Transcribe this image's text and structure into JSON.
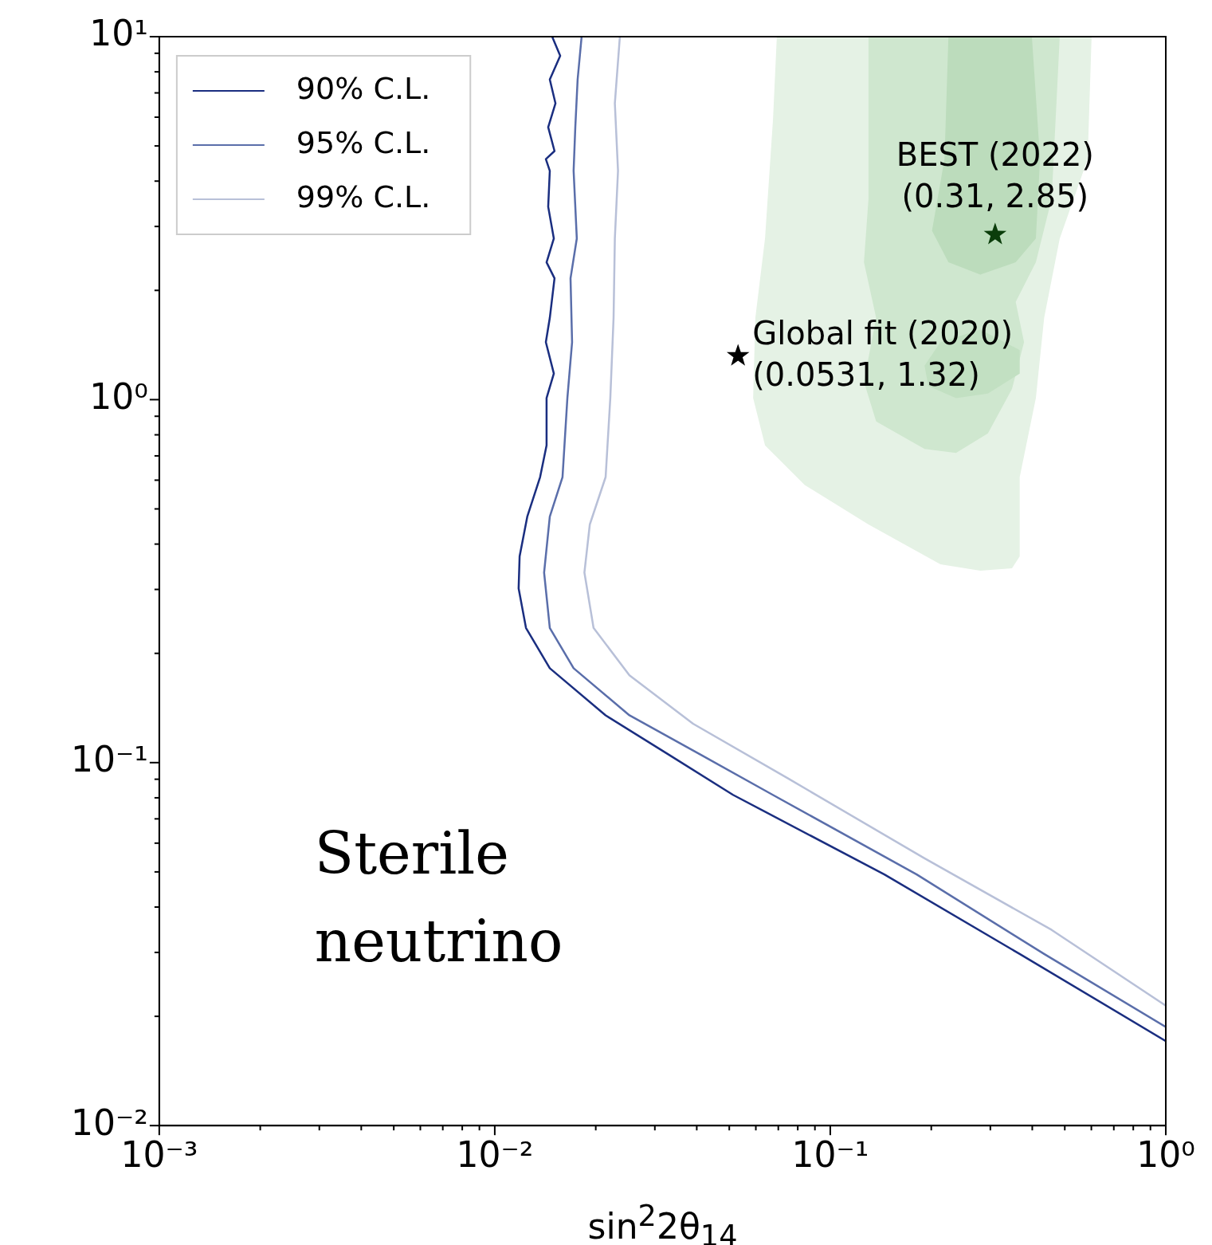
{
  "chart_data": {
    "type": "line",
    "xlabel": "sin$^{2}$2θ$_{14}$",
    "xlim": [
      0.001,
      1
    ],
    "ylim": [
      0.01,
      10
    ],
    "log": "xy",
    "grid": false,
    "legend": "top left",
    "marker": "none",
    "line_style": "solid",
    "xticks": [
      {
        "value": 0.001,
        "label": "10⁻³"
      },
      {
        "value": 0.002,
        "label": null
      },
      {
        "value": 0.003,
        "label": null
      },
      {
        "value": 0.004,
        "label": null
      },
      {
        "value": 0.005,
        "label": null
      },
      {
        "value": 0.006,
        "label": null
      },
      {
        "value": 0.007,
        "label": null
      },
      {
        "value": 0.008,
        "label": null
      },
      {
        "value": 0.009,
        "label": null
      },
      {
        "value": 0.01,
        "label": "10⁻²"
      },
      {
        "value": 0.02,
        "label": null
      },
      {
        "value": 0.03,
        "label": null
      },
      {
        "value": 0.04,
        "label": null
      },
      {
        "value": 0.05,
        "label": null
      },
      {
        "value": 0.06,
        "label": null
      },
      {
        "value": 0.07,
        "label": null
      },
      {
        "value": 0.08,
        "label": null
      },
      {
        "value": 0.09,
        "label": null
      },
      {
        "value": 0.1,
        "label": "10⁻¹"
      },
      {
        "value": 0.2,
        "label": null
      },
      {
        "value": 0.3,
        "label": null
      },
      {
        "value": 0.4,
        "label": null
      },
      {
        "value": 0.5,
        "label": null
      },
      {
        "value": 0.6,
        "label": null
      },
      {
        "value": 0.7,
        "label": null
      },
      {
        "value": 0.8,
        "label": null
      },
      {
        "value": 0.9,
        "label": null
      },
      {
        "value": 1,
        "label": "10⁰"
      }
    ],
    "yticks": [
      {
        "value": 0.01,
        "label": "10⁻²"
      },
      {
        "value": 0.02,
        "label": null
      },
      {
        "value": 0.03,
        "label": null
      },
      {
        "value": 0.04,
        "label": null
      },
      {
        "value": 0.05,
        "label": null
      },
      {
        "value": 0.06,
        "label": null
      },
      {
        "value": 0.07,
        "label": null
      },
      {
        "value": 0.08,
        "label": null
      },
      {
        "value": 0.09,
        "label": null
      },
      {
        "value": 0.1,
        "label": "10⁻¹"
      },
      {
        "value": 0.2,
        "label": null
      },
      {
        "value": 0.3,
        "label": null
      },
      {
        "value": 0.4,
        "label": null
      },
      {
        "value": 0.5,
        "label": null
      },
      {
        "value": 0.6,
        "label": null
      },
      {
        "value": 0.7,
        "label": null
      },
      {
        "value": 0.8,
        "label": null
      },
      {
        "value": 0.9,
        "label": null
      },
      {
        "value": 1,
        "label": "10⁰"
      },
      {
        "value": 2,
        "label": null
      },
      {
        "value": 3,
        "label": null
      },
      {
        "value": 4,
        "label": null
      },
      {
        "value": 5,
        "label": null
      },
      {
        "value": 6,
        "label": null
      },
      {
        "value": 7,
        "label": null
      },
      {
        "value": 8,
        "label": null
      },
      {
        "value": 9,
        "label": null
      },
      {
        "value": 10,
        "label": "10¹"
      }
    ],
    "series": [
      {
        "type": "area",
        "color": "#e5f2e5",
        "x": [
          0.0693,
          0.0675,
          0.0639,
          0.0598,
          0.0589,
          0.0639,
          0.0839,
          0.13,
          0.213,
          0.28,
          0.348,
          0.367,
          0.367,
          0.41,
          0.434,
          0.483,
          0.585,
          0.601
        ],
        "values": [
          10,
          5.92,
          2.78,
          1.68,
          1.01,
          0.748,
          0.582,
          0.453,
          0.352,
          0.338,
          0.343,
          0.37,
          0.612,
          1.01,
          1.68,
          2.78,
          4.6,
          10
        ]
      },
      {
        "type": "area",
        "color": "#cfe7cf",
        "x": [
          0.13,
          0.13,
          0.126,
          0.137,
          0.126,
          0.137,
          0.191,
          0.237,
          0.295,
          0.348,
          0.378,
          0.357,
          0.41,
          0.457,
          0.483
        ],
        "values": [
          10,
          3.58,
          2.39,
          1.68,
          1.12,
          0.871,
          0.731,
          0.713,
          0.807,
          1.07,
          1.44,
          1.86,
          2.39,
          3.58,
          10
        ]
      },
      {
        "type": "area",
        "color": "#bcdcbc",
        "x": [
          0.225,
          0.219,
          0.201,
          0.225,
          0.28,
          0.357,
          0.41,
          0.422,
          0.399
        ],
        "values": [
          10,
          4.6,
          2.92,
          2.39,
          2.21,
          2.39,
          2.78,
          4.6,
          10
        ]
      },
      {
        "type": "area",
        "color": "#c2e0c2",
        "x": [
          0.191,
          0.213,
          0.28,
          0.367,
          0.367,
          0.295,
          0.237,
          0.196
        ],
        "values": [
          1.24,
          1.44,
          1.56,
          1.37,
          1.18,
          1.04,
          1.01,
          1.09
        ]
      },
      {
        "name": "90% C.L.",
        "color": "#1a2e80",
        "x": [
          0.01483,
          0.01567,
          0.01459,
          0.01517,
          0.01443,
          0.01507,
          0.0142,
          0.01459,
          0.01443,
          0.015,
          0.01427,
          0.01507,
          0.01459,
          0.0142,
          0.015,
          0.01427,
          0.01427,
          0.01365,
          0.0125,
          0.01186,
          0.01178,
          0.01239,
          0.01459,
          0.0214,
          0.0331,
          0.0513,
          0.145,
          0.367,
          1.0
        ],
        "values": [
          10,
          8.86,
          7.62,
          6.55,
          5.63,
          4.84,
          4.6,
          4.27,
          3.4,
          2.78,
          2.39,
          2.16,
          1.68,
          1.44,
          1.18,
          1.01,
          0.748,
          0.612,
          0.476,
          0.37,
          0.302,
          0.235,
          0.182,
          0.135,
          0.105,
          0.0815,
          0.0492,
          0.0297,
          0.0171
        ]
      },
      {
        "name": "95% C.L.",
        "color": "#5a6eaa",
        "x": [
          0.01815,
          0.01766,
          0.01738,
          0.01718,
          0.01756,
          0.01682,
          0.017,
          0.01646,
          0.01592,
          0.01459,
          0.01403,
          0.01459,
          0.01718,
          0.0252,
          0.0412,
          0.0674,
          0.181,
          0.434,
          1.0
        ],
        "values": [
          10,
          7.62,
          5.63,
          4.27,
          2.78,
          2.16,
          1.44,
          1.01,
          0.612,
          0.476,
          0.334,
          0.235,
          0.182,
          0.135,
          0.105,
          0.0815,
          0.0492,
          0.0297,
          0.0187
        ]
      },
      {
        "name": "99% C.L.",
        "color": "#b8c0d8",
        "x": [
          0.0236,
          0.0228,
          0.0233,
          0.0228,
          0.0226,
          0.0221,
          0.0214,
          0.0192,
          0.0185,
          0.0197,
          0.0252,
          0.039,
          0.0752,
          0.191,
          0.457,
          1.0
        ],
        "values": [
          10,
          6.55,
          4.27,
          2.78,
          1.68,
          1.01,
          0.612,
          0.453,
          0.334,
          0.235,
          0.174,
          0.128,
          0.0902,
          0.0545,
          0.0346,
          0.0214
        ]
      },
      {
        "type": "scatter",
        "marker": "star",
        "color": "#0b3d0b",
        "x": [
          0.31
        ],
        "values": [
          2.85
        ]
      },
      {
        "type": "scatter",
        "marker": "star",
        "color": "#000000",
        "x": [
          0.0531
        ],
        "values": [
          1.32
        ]
      }
    ],
    "annotations": [
      {
        "text": "BEST (2022)\n(0.31, 2.85)",
        "x": 0.31,
        "y": 2.85
      },
      {
        "text": "Global fit (2020)\n(0.0531, 1.32)",
        "x": 0.0531,
        "y": 1.32
      },
      "Sterile\nneutrino"
    ]
  }
}
